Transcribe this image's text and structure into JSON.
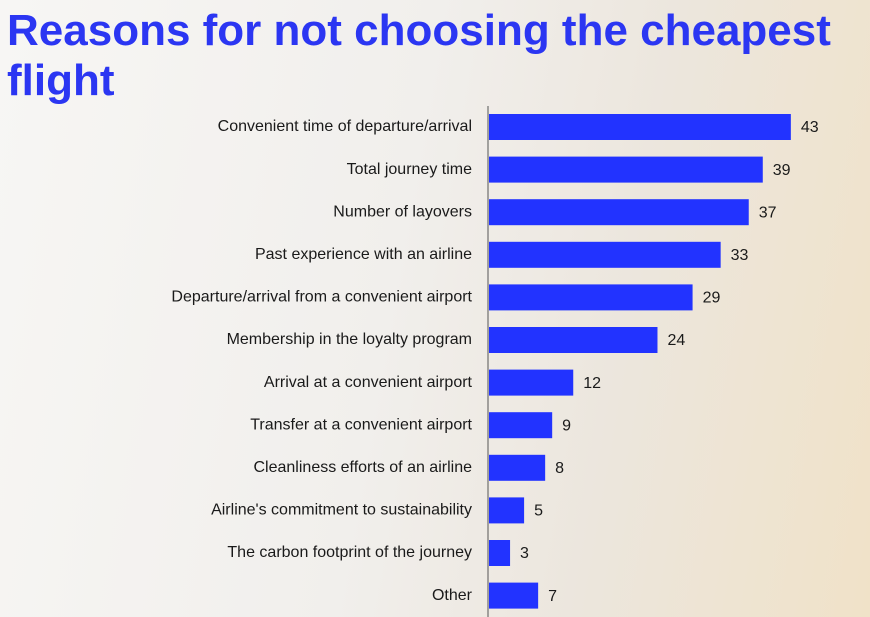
{
  "chart_data": {
    "type": "bar",
    "orientation": "horizontal",
    "title": "Reasons for not choosing the cheapest flight",
    "categories": [
      "Convenient time of departure/arrival",
      "Total journey time",
      "Number of layovers",
      "Past experience with an airline",
      "Departure/arrival from a convenient airport",
      "Membership in the loyalty program",
      "Arrival at a convenient airport",
      "Transfer at a convenient airport",
      "Cleanliness efforts of an airline",
      "Airline's commitment to sustainability",
      "The carbon footprint of the journey",
      "Other"
    ],
    "values": [
      43,
      39,
      37,
      33,
      29,
      24,
      12,
      9,
      8,
      5,
      3,
      7
    ],
    "color": "#2233ff"
  }
}
